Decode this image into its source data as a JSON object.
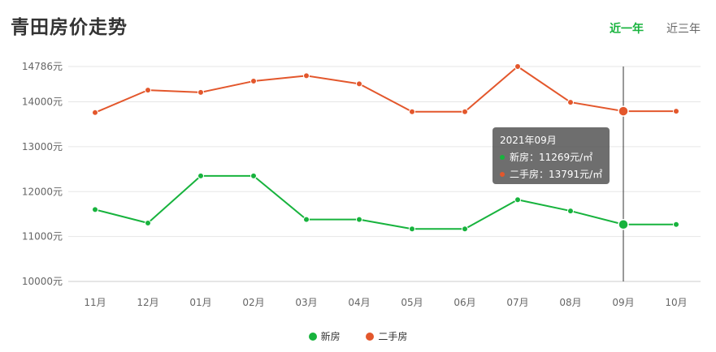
{
  "title": "青田房价走势",
  "range_tabs": [
    {
      "label": "近一年",
      "active": true
    },
    {
      "label": "近三年",
      "active": false
    }
  ],
  "colors": {
    "new": "#17b33d",
    "second": "#e3572c",
    "accent": "#17b33d"
  },
  "chart_data": {
    "type": "line",
    "categories": [
      "11月",
      "12月",
      "01月",
      "02月",
      "03月",
      "04月",
      "05月",
      "06月",
      "07月",
      "08月",
      "09月",
      "10月"
    ],
    "y_ticks": [
      {
        "value": 10000,
        "label": "10000元"
      },
      {
        "value": 11000,
        "label": "11000元"
      },
      {
        "value": 12000,
        "label": "12000元"
      },
      {
        "value": 13000,
        "label": "13000元"
      },
      {
        "value": 14000,
        "label": "14000元"
      },
      {
        "value": 14786,
        "label": "14786元"
      }
    ],
    "ylim": [
      10000,
      14786
    ],
    "grid": true,
    "legend_position": "bottom-center",
    "series": [
      {
        "name": "新房",
        "color": "#17b33d",
        "values": [
          11600,
          11300,
          12350,
          12350,
          11380,
          11380,
          11170,
          11170,
          11820,
          11570,
          11269,
          11269
        ]
      },
      {
        "name": "二手房",
        "color": "#e3572c",
        "values": [
          13760,
          14260,
          14210,
          14460,
          14580,
          14400,
          13780,
          13780,
          14786,
          13990,
          13791,
          13791
        ]
      }
    ],
    "highlight_index": 10,
    "tooltip": {
      "title": "2021年09月",
      "rows": [
        {
          "label": "新房：11269元/㎡",
          "color": "#17b33d"
        },
        {
          "label": "二手房：13791元/㎡",
          "color": "#e3572c"
        }
      ]
    }
  }
}
